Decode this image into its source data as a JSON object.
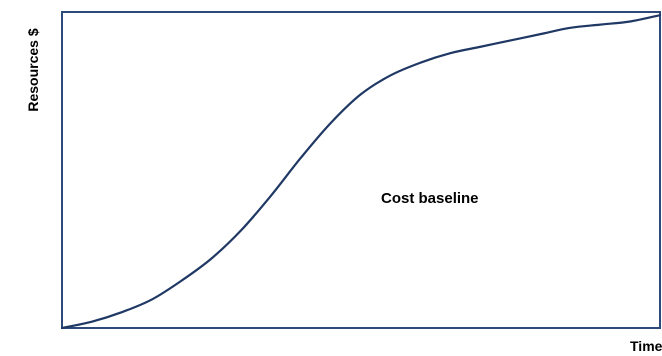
{
  "chart_data": {
    "type": "line",
    "ylabel": "Resources $",
    "xlabel": "Time",
    "annotations": [
      "Cost baseline"
    ],
    "grid": false,
    "legend": "none",
    "xlim": [
      0,
      100
    ],
    "ylim": [
      0,
      100
    ],
    "series": [
      {
        "x": [
          0,
          5,
          10,
          15,
          20,
          25,
          30,
          35,
          40,
          45,
          50,
          55,
          60,
          65,
          70,
          75,
          80,
          85,
          90,
          95,
          100
        ],
        "values": [
          0,
          2,
          5,
          9,
          15,
          22,
          31,
          42,
          54,
          65,
          74,
          80,
          84,
          87,
          89,
          91,
          93,
          95,
          96,
          97,
          99
        ],
        "color": "#1f3864"
      }
    ]
  }
}
